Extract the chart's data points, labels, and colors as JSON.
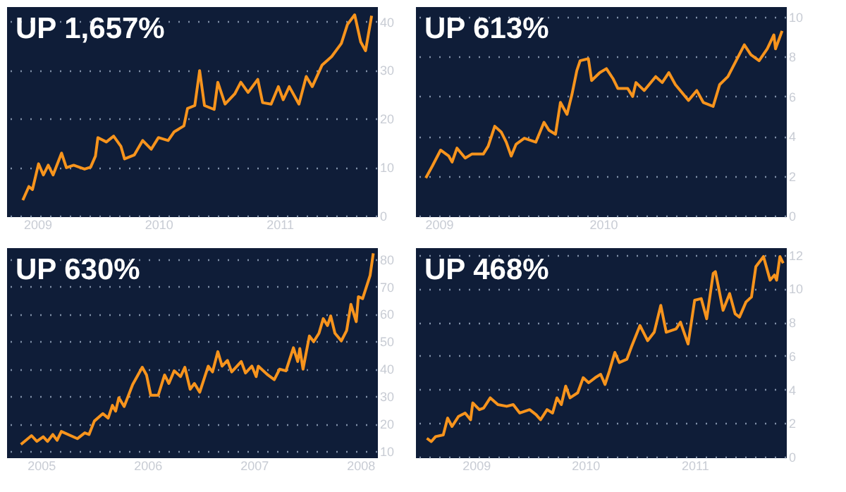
{
  "chart_data": [
    {
      "type": "line",
      "title": "UP 1,657%",
      "color": "#f7941d",
      "grid": "y",
      "xlim": [
        2008.75,
        2011.8
      ],
      "xticks": [
        2009,
        2010,
        2011
      ],
      "ylim": [
        0,
        43
      ],
      "yticks": [
        0,
        10,
        20,
        30,
        40
      ],
      "x": [
        2008.88,
        2008.93,
        2008.96,
        2009.01,
        2009.05,
        2009.09,
        2009.13,
        2009.2,
        2009.24,
        2009.3,
        2009.39,
        2009.44,
        2009.48,
        2009.5,
        2009.57,
        2009.63,
        2009.69,
        2009.72,
        2009.8,
        2009.87,
        2009.94,
        2010,
        2010.08,
        2010.13,
        2010.21,
        2010.24,
        2010.3,
        2010.34,
        2010.38,
        2010.46,
        2010.49,
        2010.55,
        2010.63,
        2010.68,
        2010.74,
        2010.82,
        2010.86,
        2010.93,
        2010.99,
        2011.03,
        2011.08,
        2011.16,
        2011.22,
        2011.27,
        2011.35,
        2011.43,
        2011.51,
        2011.56,
        2011.62,
        2011.67,
        2011.71,
        2011.76
      ],
      "values": [
        3.2,
        6,
        5.4,
        10.7,
        8.4,
        10.4,
        8.4,
        12.9,
        9.9,
        10.4,
        9.6,
        10,
        12.3,
        16.1,
        15.2,
        16.4,
        14.3,
        11.7,
        12.5,
        15.5,
        13.7,
        16.1,
        15.5,
        17.3,
        18.5,
        22.1,
        22.7,
        29.9,
        22.7,
        21.9,
        27.5,
        23,
        25.1,
        27.5,
        25.4,
        28.1,
        23.3,
        23,
        26.6,
        23.9,
        26.6,
        23,
        28.7,
        26.6,
        31,
        32.8,
        35.5,
        39.4,
        41.4,
        35.8,
        34,
        41.2
      ]
    },
    {
      "type": "line",
      "title": "UP 613%",
      "color": "#f7941d",
      "grid": "y",
      "xlim": [
        2008.86,
        2011.11
      ],
      "xticks": [
        2009,
        2010
      ],
      "ylim": [
        0,
        10.5
      ],
      "yticks": [
        0,
        2,
        4,
        6,
        8,
        10
      ],
      "x": [
        2008.92,
        2008.96,
        2009.01,
        2009.06,
        2009.08,
        2009.11,
        2009.16,
        2009.2,
        2009.27,
        2009.3,
        2009.34,
        2009.38,
        2009.41,
        2009.44,
        2009.47,
        2009.52,
        2009.59,
        2009.64,
        2009.67,
        2009.71,
        2009.74,
        2009.78,
        2009.81,
        2009.84,
        2009.86,
        2009.91,
        2009.93,
        2009.98,
        2010.02,
        2010.06,
        2010.09,
        2010.15,
        2010.18,
        2010.2,
        2010.25,
        2010.32,
        2010.36,
        2010.4,
        2010.44,
        2010.52,
        2010.57,
        2010.61,
        2010.67,
        2010.71,
        2010.76,
        2010.81,
        2010.86,
        2010.9,
        2010.95,
        2011,
        2011.04,
        2011.05,
        2011.09
      ],
      "values": [
        1.9,
        2.5,
        3.3,
        3,
        2.7,
        3.4,
        2.9,
        3.1,
        3.1,
        3.5,
        4.5,
        4.2,
        3.7,
        3,
        3.6,
        3.9,
        3.7,
        4.7,
        4.3,
        4.1,
        5.7,
        5.1,
        6.1,
        7.3,
        7.8,
        7.9,
        6.8,
        7.2,
        7.4,
        6.9,
        6.4,
        6.4,
        6,
        6.7,
        6.3,
        7,
        6.7,
        7.2,
        6.6,
        5.8,
        6.3,
        5.7,
        5.5,
        6.6,
        7,
        7.8,
        8.6,
        8.1,
        7.8,
        8.4,
        9.1,
        8.4,
        9.3
      ]
    },
    {
      "type": "line",
      "title": "UP 630%",
      "color": "#f7941d",
      "grid": "y",
      "xlim": [
        2004.68,
        2008.15
      ],
      "xticks": [
        2005,
        2006,
        2007,
        2008
      ],
      "ylim": [
        8,
        84
      ],
      "yticks": [
        10,
        20,
        30,
        40,
        50,
        60,
        70,
        80
      ],
      "x": [
        2004.81,
        2004.91,
        2004.96,
        2005.02,
        2005.06,
        2005.11,
        2005.15,
        2005.19,
        2005.34,
        2005.41,
        2005.45,
        2005.5,
        2005.58,
        2005.63,
        2005.67,
        2005.7,
        2005.73,
        2005.78,
        2005.86,
        2005.95,
        2005.99,
        2006.03,
        2006.1,
        2006.16,
        2006.2,
        2006.25,
        2006.31,
        2006.35,
        2006.4,
        2006.44,
        2006.49,
        2006.57,
        2006.61,
        2006.66,
        2006.7,
        2006.75,
        2006.79,
        2006.88,
        2006.92,
        2006.98,
        2007.02,
        2007.04,
        2007.13,
        2007.19,
        2007.24,
        2007.3,
        2007.37,
        2007.41,
        2007.43,
        2007.46,
        2007.52,
        2007.56,
        2007.61,
        2007.65,
        2007.69,
        2007.72,
        2007.76,
        2007.82,
        2007.87,
        2007.91,
        2007.96,
        2007.98,
        2008.02,
        2008.09,
        2008.12
      ],
      "values": [
        12.5,
        15.7,
        13.6,
        15.3,
        13.6,
        16.1,
        14,
        17.2,
        14.6,
        16.7,
        16.1,
        21,
        23.7,
        22.1,
        26.7,
        24.6,
        29.5,
        26.3,
        34.3,
        40.6,
        37.8,
        30.4,
        30.4,
        37.8,
        34.7,
        39.3,
        37.2,
        40.6,
        32.6,
        34.7,
        31.5,
        41,
        38.9,
        46.3,
        41,
        43.1,
        38.9,
        42.7,
        38.5,
        41,
        37.2,
        41,
        37.8,
        36.1,
        39.9,
        39.3,
        47.7,
        42.7,
        47.4,
        39.9,
        52,
        49.9,
        53,
        58.3,
        55.8,
        59.3,
        53,
        50.2,
        54,
        63.5,
        57.2,
        66.3,
        65.6,
        74,
        82.1
      ]
    },
    {
      "type": "line",
      "title": "UP 468%",
      "color": "#f7941d",
      "grid": "y",
      "xlim": [
        2008.45,
        2011.83
      ],
      "xticks": [
        2009,
        2010,
        2011
      ],
      "ylim": [
        0,
        12.4
      ],
      "yticks": [
        0,
        2,
        4,
        6,
        8,
        10,
        12
      ],
      "x": [
        2008.55,
        2008.59,
        2008.63,
        2008.7,
        2008.74,
        2008.78,
        2008.84,
        2008.9,
        2008.95,
        2008.97,
        2009.03,
        2009.07,
        2009.13,
        2009.2,
        2009.28,
        2009.34,
        2009.4,
        2009.49,
        2009.55,
        2009.59,
        2009.65,
        2009.7,
        2009.74,
        2009.78,
        2009.82,
        2009.86,
        2009.93,
        2009.98,
        2010.03,
        2010.09,
        2010.14,
        2010.18,
        2010.22,
        2010.27,
        2010.31,
        2010.38,
        2010.42,
        2010.5,
        2010.57,
        2010.63,
        2010.69,
        2010.74,
        2010.83,
        2010.87,
        2010.94,
        2011,
        2011.06,
        2011.11,
        2011.17,
        2011.19,
        2011.26,
        2011.32,
        2011.37,
        2011.41,
        2011.47,
        2011.52,
        2011.56,
        2011.63,
        2011.69,
        2011.73,
        2011.75,
        2011.78,
        2011.81
      ],
      "values": [
        1.1,
        0.9,
        1.2,
        1.3,
        2.3,
        1.8,
        2.4,
        2.6,
        2.2,
        3.2,
        2.8,
        2.9,
        3.5,
        3.1,
        3,
        3.1,
        2.6,
        2.8,
        2.5,
        2.2,
        2.8,
        2.6,
        3.5,
        3.1,
        4.2,
        3.5,
        3.8,
        4.7,
        4.4,
        4.7,
        4.9,
        4.3,
        5.1,
        6.2,
        5.6,
        5.8,
        6.5,
        7.8,
        6.9,
        7.4,
        9,
        7.4,
        7.6,
        8,
        6.7,
        9.3,
        9.4,
        8.2,
        10.9,
        11,
        8.7,
        9.7,
        8.5,
        8.3,
        9.2,
        9.5,
        11.3,
        11.9,
        10.5,
        10.8,
        10.5,
        11.9,
        11.5
      ]
    }
  ]
}
